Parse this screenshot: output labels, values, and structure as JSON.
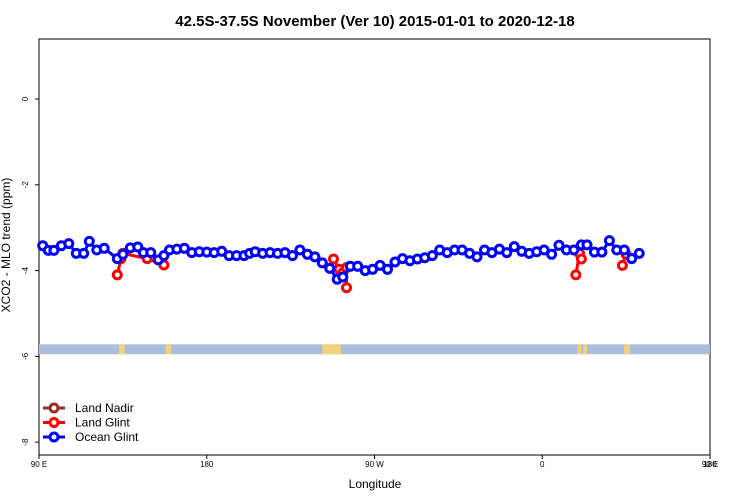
{
  "chart_data": {
    "type": "line",
    "title": "42.5S-37.5S November (Ver 10)   2015-01-01 to 2020-12-18",
    "xlabel": "Longitude",
    "ylabel": "XCO2 - MLO trend (ppm)",
    "xlim": [
      90,
      450
    ],
    "ylim": [
      -8.3,
      1.4
    ],
    "x_ticks": [
      {
        "value": 90,
        "label": "90 E"
      },
      {
        "value": 180,
        "label": "180"
      },
      {
        "value": 270,
        "label": "90 W"
      },
      {
        "value": 360,
        "label": "0"
      },
      {
        "value": 450,
        "label": "90 E"
      },
      {
        "value": 540,
        "label": "180"
      }
    ],
    "y_ticks": [
      0,
      -2,
      -4,
      -6,
      -8
    ],
    "legend_position": "bottom-left",
    "surface_band": {
      "y_range": [
        -5.95,
        -5.72
      ],
      "ocean_color": "#a8bedc",
      "land_color": "#f4d27a",
      "land_x": [
        [
          133,
          135
        ],
        [
          134,
          136
        ],
        [
          158,
          160
        ],
        [
          160,
          161
        ],
        [
          242,
          244
        ],
        [
          244,
          246
        ],
        [
          246,
          248
        ],
        [
          248,
          250
        ],
        [
          250,
          252
        ],
        [
          379,
          381
        ],
        [
          382,
          384
        ],
        [
          404,
          406
        ],
        [
          406,
          407
        ]
      ]
    },
    "series": [
      {
        "name": "Land Nadir",
        "color": "#9b2a2a",
        "x": [],
        "y": []
      },
      {
        "name": "Land Glint",
        "color": "#ff0000",
        "segments": [
          {
            "x": [
              132,
              134,
              135,
              148,
              157
            ],
            "y": [
              -4.1,
              -3.72,
              -3.6,
              -3.72,
              -3.87
            ]
          },
          {
            "x": [
              248,
              251,
              253,
              255,
              255
            ],
            "y": [
              -3.73,
              -3.97,
              -4.05,
              -3.93,
              -4.4
            ]
          },
          {
            "x": [
              378,
              380,
              381
            ],
            "y": [
              -4.1,
              -3.6,
              -3.73
            ]
          },
          {
            "x": [
              403,
              405
            ],
            "y": [
              -3.88,
              -3.62
            ]
          }
        ]
      },
      {
        "name": "Ocean Glint",
        "color": "#0000ff",
        "x": [
          92,
          95,
          98,
          102,
          106,
          110,
          114,
          117,
          121,
          125,
          132,
          135,
          139,
          143,
          146,
          150,
          154,
          157,
          160,
          164,
          168,
          172,
          176,
          180,
          184,
          188,
          192,
          196,
          200,
          203,
          206,
          210,
          214,
          218,
          222,
          226,
          230,
          234,
          238,
          242,
          246,
          250,
          253,
          257,
          261,
          265,
          269,
          273,
          277,
          281,
          285,
          289,
          293,
          297,
          301,
          305,
          309,
          313,
          317,
          321,
          325,
          329,
          333,
          337,
          341,
          345,
          349,
          353,
          357,
          361,
          365,
          369,
          373,
          377,
          381,
          384,
          388,
          392,
          396,
          400,
          404,
          408,
          412
        ],
        "y": [
          -3.42,
          -3.53,
          -3.53,
          -3.42,
          -3.37,
          -3.6,
          -3.6,
          -3.32,
          -3.52,
          -3.48,
          -3.72,
          -3.62,
          -3.47,
          -3.45,
          -3.58,
          -3.58,
          -3.75,
          -3.65,
          -3.52,
          -3.5,
          -3.48,
          -3.58,
          -3.56,
          -3.57,
          -3.58,
          -3.55,
          -3.65,
          -3.65,
          -3.65,
          -3.6,
          -3.56,
          -3.6,
          -3.58,
          -3.6,
          -3.58,
          -3.65,
          -3.52,
          -3.62,
          -3.68,
          -3.82,
          -3.95,
          -4.2,
          -4.15,
          -3.9,
          -3.9,
          -4.0,
          -3.97,
          -3.88,
          -3.97,
          -3.8,
          -3.72,
          -3.77,
          -3.73,
          -3.7,
          -3.65,
          -3.52,
          -3.58,
          -3.52,
          -3.52,
          -3.6,
          -3.68,
          -3.52,
          -3.58,
          -3.5,
          -3.58,
          -3.44,
          -3.55,
          -3.6,
          -3.56,
          -3.52,
          -3.62,
          -3.41,
          -3.52,
          -3.52,
          -3.4,
          -3.4,
          -3.57,
          -3.57,
          -3.3,
          -3.52,
          -3.52,
          -3.72,
          -3.6
        ]
      }
    ]
  }
}
